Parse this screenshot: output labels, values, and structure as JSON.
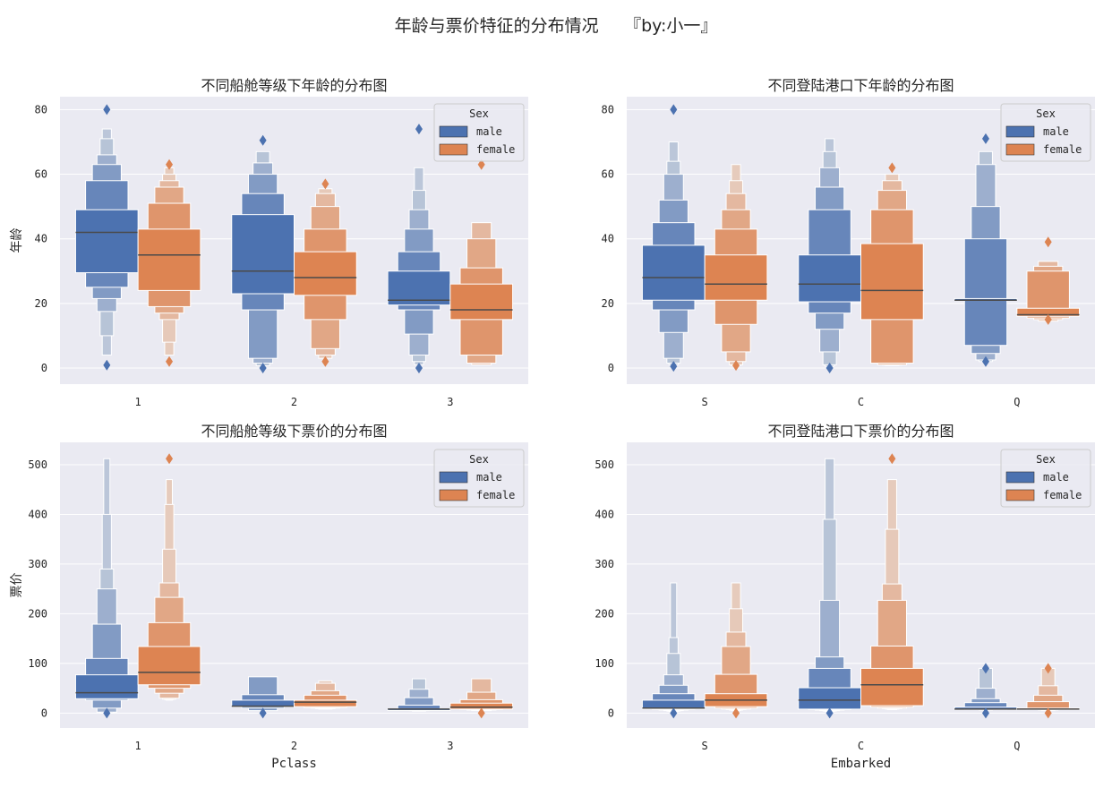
{
  "figure": {
    "suptitle": "年龄与票价特征的分布情况　　『by:小一』"
  },
  "colors": {
    "male": "#4c72b0",
    "female": "#dd8452",
    "background": "#eaeaf2"
  },
  "chart_data": [
    {
      "type": "boxen",
      "title": "不同船舱等级下年龄的分布图",
      "xlabel": "",
      "ylabel": "年龄",
      "categories": [
        "1",
        "2",
        "3"
      ],
      "ylim": [
        -5,
        84
      ],
      "yticks": [
        0,
        20,
        40,
        60,
        80
      ],
      "legend": {
        "title": "Sex",
        "entries": [
          "male",
          "female"
        ],
        "position": "top-right"
      },
      "series": [
        {
          "name": "male",
          "values": [
            {
              "median": 42,
              "boxes": [
                [
                  29.5,
                  49
                ],
                [
                  25,
                  58
                ],
                [
                  21.5,
                  63
                ],
                [
                  17.5,
                  66
                ],
                [
                  10,
                  71
                ],
                [
                  4,
                  74
                ]
              ],
              "outliers": [
                0.9,
                80
              ]
            },
            {
              "median": 30,
              "boxes": [
                [
                  23,
                  47.5
                ],
                [
                  18,
                  54
                ],
                [
                  3,
                  60
                ],
                [
                  1.5,
                  63.5
                ],
                [
                  0.7,
                  67
                ]
              ],
              "outliers": [
                0,
                70.5
              ]
            },
            {
              "median": 21,
              "boxes": [
                [
                  19.5,
                  30
                ],
                [
                  18,
                  36
                ],
                [
                  10.5,
                  43
                ],
                [
                  4,
                  49
                ],
                [
                  2,
                  55
                ],
                [
                  1,
                  62
                ]
              ],
              "outliers": [
                0,
                74
              ]
            }
          ]
        },
        {
          "name": "female",
          "values": [
            {
              "median": 35,
              "boxes": [
                [
                  24,
                  43
                ],
                [
                  19,
                  51
                ],
                [
                  17,
                  56
                ],
                [
                  15,
                  58
                ],
                [
                  8,
                  60
                ],
                [
                  4,
                  62
                ]
              ],
              "outliers": [
                2,
                63
              ]
            },
            {
              "median": 28,
              "boxes": [
                [
                  22.5,
                  36
                ],
                [
                  15,
                  43
                ],
                [
                  6,
                  50
                ],
                [
                  4,
                  54
                ],
                [
                  3,
                  55.5
                ]
              ],
              "outliers": [
                2,
                57
              ]
            },
            {
              "median": 18,
              "boxes": [
                [
                  15,
                  26
                ],
                [
                  4,
                  31
                ],
                [
                  1.5,
                  40
                ],
                [
                  1,
                  45
                ]
              ],
              "outliers": [
                63
              ]
            }
          ]
        }
      ]
    },
    {
      "type": "boxen",
      "title": "不同登陆港口下年龄的分布图",
      "xlabel": "",
      "ylabel": "",
      "categories": [
        "S",
        "C",
        "Q"
      ],
      "ylim": [
        -5,
        84
      ],
      "yticks": [
        0,
        20,
        40,
        60,
        80
      ],
      "legend": {
        "title": "Sex",
        "entries": [
          "male",
          "female"
        ],
        "position": "top-right"
      },
      "series": [
        {
          "name": "male",
          "values": [
            {
              "median": 28,
              "boxes": [
                [
                  21,
                  38
                ],
                [
                  18,
                  45
                ],
                [
                  11,
                  52
                ],
                [
                  3,
                  60
                ],
                [
                  1.5,
                  64
                ],
                [
                  1,
                  70
                ]
              ],
              "outliers": [
                0.5,
                80
              ]
            },
            {
              "median": 26,
              "boxes": [
                [
                  20.5,
                  35
                ],
                [
                  17,
                  49
                ],
                [
                  12,
                  56
                ],
                [
                  5,
                  62
                ],
                [
                  1,
                  67
                ],
                [
                  0.5,
                  71
                ]
              ],
              "outliers": [
                0
              ]
            },
            {
              "median": 21,
              "boxes": [
                [
                  21,
                  21.5
                ],
                [
                  7,
                  40
                ],
                [
                  4.5,
                  50
                ],
                [
                  2.5,
                  63
                ],
                [
                  2,
                  67
                ]
              ],
              "outliers": [
                2,
                71
              ]
            }
          ]
        },
        {
          "name": "female",
          "values": [
            {
              "median": 26,
              "boxes": [
                [
                  21,
                  35
                ],
                [
                  13.5,
                  43
                ],
                [
                  5,
                  49
                ],
                [
                  2,
                  54
                ],
                [
                  1,
                  58
                ],
                [
                  0.8,
                  63
                ]
              ],
              "outliers": [
                0.8
              ]
            },
            {
              "median": 24,
              "boxes": [
                [
                  15,
                  38.5
                ],
                [
                  1.5,
                  49
                ],
                [
                  1,
                  55
                ],
                [
                  0.9,
                  58
                ],
                [
                  0.8,
                  60
                ]
              ],
              "outliers": [
                62
              ]
            },
            {
              "median": 16.5,
              "boxes": [
                [
                  16,
                  18.5
                ],
                [
                  15.5,
                  30
                ],
                [
                  15,
                  31.5
                ],
                [
                  14.5,
                  33
                ]
              ],
              "outliers": [
                15,
                39
              ]
            }
          ]
        }
      ]
    },
    {
      "type": "boxen",
      "title": "不同船舱等级下票价的分布图",
      "xlabel": "Pclass",
      "ylabel": "票价",
      "categories": [
        "1",
        "2",
        "3"
      ],
      "ylim": [
        -30,
        545
      ],
      "yticks": [
        0,
        100,
        200,
        300,
        400,
        500
      ],
      "legend": {
        "title": "Sex",
        "entries": [
          "male",
          "female"
        ],
        "position": "top-right"
      },
      "series": [
        {
          "name": "male",
          "values": [
            {
              "median": 41,
              "boxes": [
                [
                  29,
                  77
                ],
                [
                  26,
                  110
                ],
                [
                  10,
                  179
                ],
                [
                  2,
                  250
                ],
                [
                  0,
                  290
                ],
                [
                  0,
                  400
                ],
                [
                  0,
                  512
                ]
              ],
              "outliers": [
                0
              ]
            },
            {
              "median": 14,
              "boxes": [
                [
                  13,
                  26
                ],
                [
                  10,
                  37
                ],
                [
                  5,
                  73
                ]
              ],
              "outliers": [
                0
              ]
            },
            {
              "median": 8,
              "boxes": [
                [
                  7.5,
                  8
                ],
                [
                  7,
                  16
                ],
                [
                  6,
                  31
                ],
                [
                  5,
                  48
                ],
                [
                  4,
                  69
                ]
              ],
              "outliers": []
            }
          ]
        },
        {
          "name": "female",
          "values": [
            {
              "median": 82,
              "boxes": [
                [
                  57,
                  134
                ],
                [
                  50,
                  182
                ],
                [
                  40,
                  233
                ],
                [
                  30,
                  262
                ],
                [
                  28,
                  330
                ],
                [
                  27,
                  420
                ],
                [
                  26,
                  470
                ]
              ],
              "outliers": [
                512
              ]
            },
            {
              "median": 22,
              "boxes": [
                [
                  13,
                  26
                ],
                [
                  11,
                  36
                ],
                [
                  10,
                  45
                ],
                [
                  9,
                  60
                ],
                [
                  8,
                  65
                ]
              ],
              "outliers": []
            },
            {
              "median": 12,
              "boxes": [
                [
                  8,
                  20
                ],
                [
                  7,
                  27
                ],
                [
                  6,
                  42
                ],
                [
                  5,
                  69
                ]
              ],
              "outliers": [
                0
              ]
            }
          ]
        }
      ]
    },
    {
      "type": "boxen",
      "title": "不同登陆港口下票价的分布图",
      "xlabel": "Embarked",
      "ylabel": "",
      "categories": [
        "S",
        "C",
        "Q"
      ],
      "ylim": [
        -30,
        545
      ],
      "yticks": [
        0,
        100,
        200,
        300,
        400,
        500
      ],
      "legend": {
        "title": "Sex",
        "entries": [
          "male",
          "female"
        ],
        "position": "top-right"
      },
      "series": [
        {
          "name": "male",
          "values": [
            {
              "median": 10,
              "boxes": [
                [
                  8,
                  26
                ],
                [
                  7,
                  39
                ],
                [
                  6,
                  56
                ],
                [
                  5,
                  77
                ],
                [
                  4,
                  120
                ],
                [
                  3,
                  152
                ],
                [
                  2,
                  262
                ]
              ],
              "outliers": [
                0
              ]
            },
            {
              "median": 26,
              "boxes": [
                [
                  8,
                  51
                ],
                [
                  7,
                  90
                ],
                [
                  6,
                  113
                ],
                [
                  5,
                  227
                ],
                [
                  4,
                  390
                ],
                [
                  3,
                  512
                ]
              ],
              "outliers": [
                0
              ]
            },
            {
              "median": 8,
              "boxes": [
                [
                  7.5,
                  12
                ],
                [
                  7,
                  21
                ],
                [
                  7,
                  29
                ],
                [
                  7,
                  50
                ],
                [
                  6,
                  90
                ]
              ],
              "outliers": [
                0,
                90
              ]
            }
          ]
        },
        {
          "name": "female",
          "values": [
            {
              "median": 26,
              "boxes": [
                [
                  13,
                  39
                ],
                [
                  10,
                  78
                ],
                [
                  8,
                  134
                ],
                [
                  7,
                  163
                ],
                [
                  6,
                  210
                ],
                [
                  5,
                  262
                ]
              ],
              "outliers": [
                0
              ]
            },
            {
              "median": 57,
              "boxes": [
                [
                  15,
                  90
                ],
                [
                  12,
                  135
                ],
                [
                  10,
                  227
                ],
                [
                  9,
                  260
                ],
                [
                  8,
                  370
                ],
                [
                  7,
                  470
                ]
              ],
              "outliers": [
                512
              ]
            },
            {
              "median": 8,
              "boxes": [
                [
                  7.5,
                  10
                ],
                [
                  7,
                  23
                ],
                [
                  7,
                  36
                ],
                [
                  6,
                  55
                ],
                [
                  5,
                  90
                ]
              ],
              "outliers": [
                0,
                90
              ]
            }
          ]
        }
      ]
    }
  ]
}
